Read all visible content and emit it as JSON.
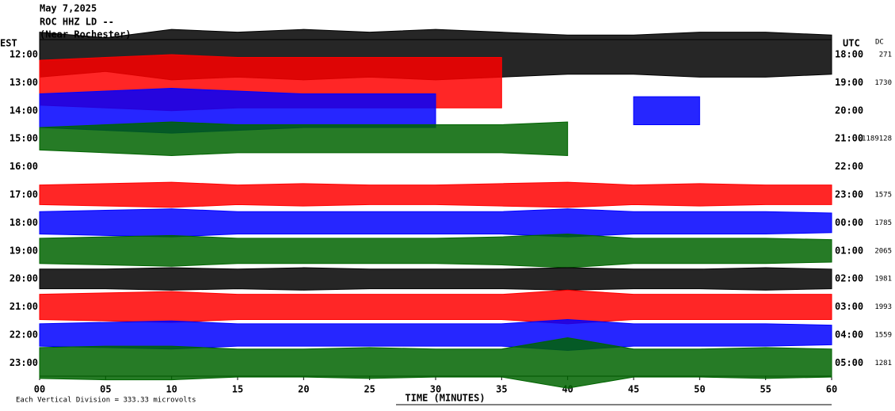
{
  "chart_data": {
    "type": "helicorder",
    "title_lines": [
      "May 7,2025",
      "ROC HHZ LD --",
      "(Near Rochester)"
    ],
    "left_label": "EST",
    "right_label": "UTC",
    "dc_label": "DC",
    "categories": [
      "12:00",
      "13:00",
      "14:00",
      "15:00",
      "16:00",
      "17:00",
      "18:00",
      "19:00",
      "20:00",
      "21:00",
      "22:00",
      "23:00"
    ],
    "right_categories": [
      "18:00",
      "19:00",
      "20:00",
      "21:00",
      "22:00",
      "23:00",
      "00:00",
      "01:00",
      "02:00",
      "03:00",
      "04:00",
      "05:00"
    ],
    "dc": [
      271,
      1730,
      null,
      -1189128,
      null,
      1575,
      1785,
      2065,
      1981,
      1993,
      1559,
      1281
    ],
    "x": [
      0,
      5,
      10,
      15,
      20,
      25,
      30,
      35,
      40,
      45,
      50,
      55,
      60
    ],
    "xlim": [
      0,
      60
    ],
    "xticks": [
      {
        "value": 0,
        "label": "00"
      },
      {
        "value": 5,
        "label": "05"
      },
      {
        "value": 10,
        "label": "10"
      },
      {
        "value": 15,
        "label": "15"
      },
      {
        "value": 20,
        "label": "20"
      },
      {
        "value": 25,
        "label": "25"
      },
      {
        "value": 30,
        "label": "30"
      },
      {
        "value": 35,
        "label": "35"
      },
      {
        "value": 40,
        "label": "40"
      },
      {
        "value": 45,
        "label": "45"
      },
      {
        "value": 50,
        "label": "50"
      },
      {
        "value": 55,
        "label": "55"
      },
      {
        "value": 60,
        "label": "60"
      }
    ],
    "xlabel": "TIME (MINUTES)",
    "footnote": "Each Vertical Division = 333.33 microvolts",
    "traces": [
      {
        "color": "#000000",
        "values": [
          0.8,
          0.6,
          0.9,
          0.8,
          0.9,
          0.8,
          0.9,
          0.8,
          0.7,
          0.7,
          0.8,
          0.8,
          0.7
        ]
      },
      {
        "color": "#ff0000",
        "values": [
          0.8,
          0.9,
          1.0,
          0.9,
          0.9,
          0.9,
          0.9,
          0.9,
          null,
          null,
          null,
          null,
          null
        ]
      },
      {
        "color": "#0000ff",
        "values": [
          0.6,
          0.7,
          0.8,
          0.7,
          0.6,
          0.6,
          0.6,
          null,
          null,
          0.5,
          0.5,
          null,
          null
        ]
      },
      {
        "color": "#006400",
        "values": [
          0.4,
          0.5,
          0.6,
          0.5,
          0.5,
          0.5,
          0.5,
          0.5,
          0.6,
          null,
          null,
          null,
          null
        ]
      },
      {
        "color": "#000000",
        "values": [
          null,
          null,
          null,
          null,
          null,
          null,
          null,
          null,
          null,
          null,
          null,
          null,
          null
        ]
      },
      {
        "color": "#ff0000",
        "values": [
          0.35,
          0.4,
          0.45,
          0.35,
          0.4,
          0.35,
          0.35,
          0.4,
          0.45,
          0.35,
          0.4,
          0.35,
          0.35
        ]
      },
      {
        "color": "#0000ff",
        "values": [
          0.4,
          0.45,
          0.5,
          0.4,
          0.4,
          0.4,
          0.4,
          0.4,
          0.5,
          0.4,
          0.4,
          0.4,
          0.35
        ]
      },
      {
        "color": "#006400",
        "values": [
          0.45,
          0.5,
          0.55,
          0.45,
          0.45,
          0.45,
          0.45,
          0.5,
          0.6,
          0.45,
          0.45,
          0.45,
          0.4
        ]
      },
      {
        "color": "#000000",
        "values": [
          0.35,
          0.35,
          0.4,
          0.35,
          0.4,
          0.35,
          0.35,
          0.35,
          0.4,
          0.35,
          0.35,
          0.4,
          0.35
        ]
      },
      {
        "color": "#ff0000",
        "values": [
          0.45,
          0.5,
          0.55,
          0.45,
          0.45,
          0.45,
          0.45,
          0.45,
          0.6,
          0.45,
          0.45,
          0.45,
          0.45
        ]
      },
      {
        "color": "#0000ff",
        "values": [
          0.4,
          0.45,
          0.5,
          0.4,
          0.4,
          0.4,
          0.4,
          0.4,
          0.55,
          0.4,
          0.4,
          0.4,
          0.35
        ]
      },
      {
        "color": "#006400",
        "values": [
          0.55,
          0.6,
          0.6,
          0.5,
          0.5,
          0.55,
          0.5,
          0.5,
          0.9,
          0.5,
          0.5,
          0.55,
          0.5
        ]
      }
    ]
  }
}
